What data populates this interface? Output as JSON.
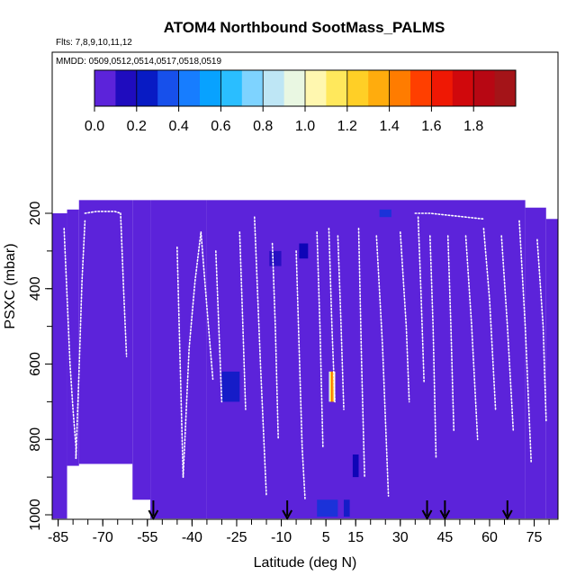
{
  "chart_data": {
    "type": "heatmap",
    "title": "ATOM4 Northbound SootMass_PALMS",
    "flights_label": "Flts: 7,8,9,10,11,12",
    "dates_label": "MMDD: 0509,0512,0514,0517,0518,0519",
    "xlabel": "Latitude (deg N)",
    "ylabel": "PSXC (mbar)",
    "xlim": [
      -87,
      83
    ],
    "ylim": [
      1010,
      130
    ],
    "x_ticks": [
      -85,
      -70,
      -55,
      -40,
      -25,
      -10,
      5,
      15,
      30,
      45,
      60,
      75
    ],
    "y_ticks": [
      200,
      400,
      600,
      800,
      1000
    ],
    "colorbar": {
      "range": [
        0,
        2.0
      ],
      "ticks": [
        "0.0",
        "0.2",
        "0.4",
        "0.6",
        "0.8",
        "1.0",
        "1.2",
        "1.4",
        "1.6",
        "1.8"
      ],
      "colors": [
        "#7b2fe8",
        "#0000b0",
        "#1e6aff",
        "#00b4ff",
        "#a8ddff",
        "#ffffd8",
        "#ffe033",
        "#ff9a00",
        "#ff2000",
        "#c00010",
        "#9a1a1a"
      ]
    },
    "background_value": 0.05,
    "coverage_columns": [
      {
        "lat": [
          -87,
          -82
        ],
        "p": [
          200,
          1010
        ]
      },
      {
        "lat": [
          -82,
          -78
        ],
        "p": [
          190,
          870
        ]
      },
      {
        "lat": [
          -78,
          -60
        ],
        "p": [
          165,
          865
        ]
      },
      {
        "lat": [
          -60,
          -54
        ],
        "p": [
          165,
          960
        ]
      },
      {
        "lat": [
          -54,
          -35
        ],
        "p": [
          165,
          1010
        ]
      },
      {
        "lat": [
          -35,
          72
        ],
        "p": [
          165,
          1010
        ]
      },
      {
        "lat": [
          72,
          79
        ],
        "p": [
          185,
          1010
        ]
      },
      {
        "lat": [
          79,
          83
        ],
        "p": [
          215,
          1010
        ]
      }
    ],
    "anomalies": [
      {
        "lat": [
          6,
          8
        ],
        "p": [
          620,
          700
        ],
        "value": 1.2
      },
      {
        "lat": [
          -30,
          -24
        ],
        "p": [
          620,
          700
        ],
        "value": 0.25
      },
      {
        "lat": [
          -4,
          -1
        ],
        "p": [
          280,
          320
        ],
        "value": 0.2
      },
      {
        "lat": [
          23,
          27
        ],
        "p": [
          190,
          210
        ],
        "value": 0.3
      },
      {
        "lat": [
          14,
          16
        ],
        "p": [
          840,
          900
        ],
        "value": 0.2
      },
      {
        "lat": [
          2,
          9
        ],
        "p": [
          960,
          1005
        ],
        "value": 0.3
      },
      {
        "lat": [
          11,
          13
        ],
        "p": [
          960,
          1005
        ],
        "value": 0.25
      },
      {
        "lat": [
          -14,
          -10
        ],
        "p": [
          300,
          340
        ],
        "value": 0.15
      }
    ],
    "arrow_latitudes": [
      -53,
      -8,
      39,
      45,
      66
    ],
    "flight_tracks": [
      {
        "x": [
          -83,
          -82,
          -81,
          -80,
          -79,
          -79
        ],
        "y": [
          240,
          420,
          600,
          720,
          820,
          850
        ]
      },
      {
        "x": [
          -79,
          -78,
          -77,
          -76
        ],
        "y": [
          850,
          620,
          380,
          220
        ]
      },
      {
        "x": [
          -76,
          -72,
          -66,
          -64
        ],
        "y": [
          200,
          195,
          195,
          200
        ]
      },
      {
        "x": [
          -64,
          -63,
          -62
        ],
        "y": [
          200,
          400,
          580
        ]
      },
      {
        "x": [
          -45,
          -44,
          -43
        ],
        "y": [
          290,
          600,
          900
        ]
      },
      {
        "x": [
          -43,
          -41,
          -39,
          -37
        ],
        "y": [
          900,
          560,
          380,
          250
        ]
      },
      {
        "x": [
          -37,
          -35,
          -33
        ],
        "y": [
          250,
          450,
          640
        ]
      },
      {
        "x": [
          -32,
          -31,
          -30
        ],
        "y": [
          300,
          500,
          700
        ]
      },
      {
        "x": [
          -24,
          -23,
          -22
        ],
        "y": [
          250,
          480,
          720
        ]
      },
      {
        "x": [
          -19,
          -17,
          -15
        ],
        "y": [
          210,
          600,
          950
        ]
      },
      {
        "x": [
          -13,
          -12,
          -11
        ],
        "y": [
          280,
          500,
          800
        ]
      },
      {
        "x": [
          -5,
          -4,
          -3,
          -2
        ],
        "y": [
          300,
          560,
          820,
          960
        ]
      },
      {
        "x": [
          2,
          3,
          4
        ],
        "y": [
          250,
          500,
          820
        ]
      },
      {
        "x": [
          6,
          7,
          8
        ],
        "y": [
          240,
          500,
          700
        ]
      },
      {
        "x": [
          9,
          10,
          11
        ],
        "y": [
          260,
          480,
          720
        ]
      },
      {
        "x": [
          16,
          17,
          18
        ],
        "y": [
          240,
          600,
          900
        ]
      },
      {
        "x": [
          22,
          24,
          26
        ],
        "y": [
          260,
          550,
          950
        ]
      },
      {
        "x": [
          30,
          32,
          33
        ],
        "y": [
          250,
          500,
          700
        ]
      },
      {
        "x": [
          36,
          37,
          38
        ],
        "y": [
          210,
          420,
          650
        ]
      },
      {
        "x": [
          40,
          41,
          42
        ],
        "y": [
          260,
          500,
          850
        ]
      },
      {
        "x": [
          46,
          47,
          48
        ],
        "y": [
          260,
          500,
          780
        ]
      },
      {
        "x": [
          52,
          54,
          56
        ],
        "y": [
          260,
          500,
          800
        ]
      },
      {
        "x": [
          58,
          60,
          62
        ],
        "y": [
          240,
          430,
          720
        ]
      },
      {
        "x": [
          64,
          66,
          68
        ],
        "y": [
          260,
          500,
          780
        ]
      },
      {
        "x": [
          70,
          72,
          74
        ],
        "y": [
          220,
          500,
          860
        ]
      },
      {
        "x": [
          76,
          78,
          79
        ],
        "y": [
          270,
          500,
          750
        ]
      },
      {
        "x": [
          35,
          40,
          46,
          52,
          58
        ],
        "y": [
          200,
          200,
          205,
          210,
          215
        ]
      }
    ]
  }
}
